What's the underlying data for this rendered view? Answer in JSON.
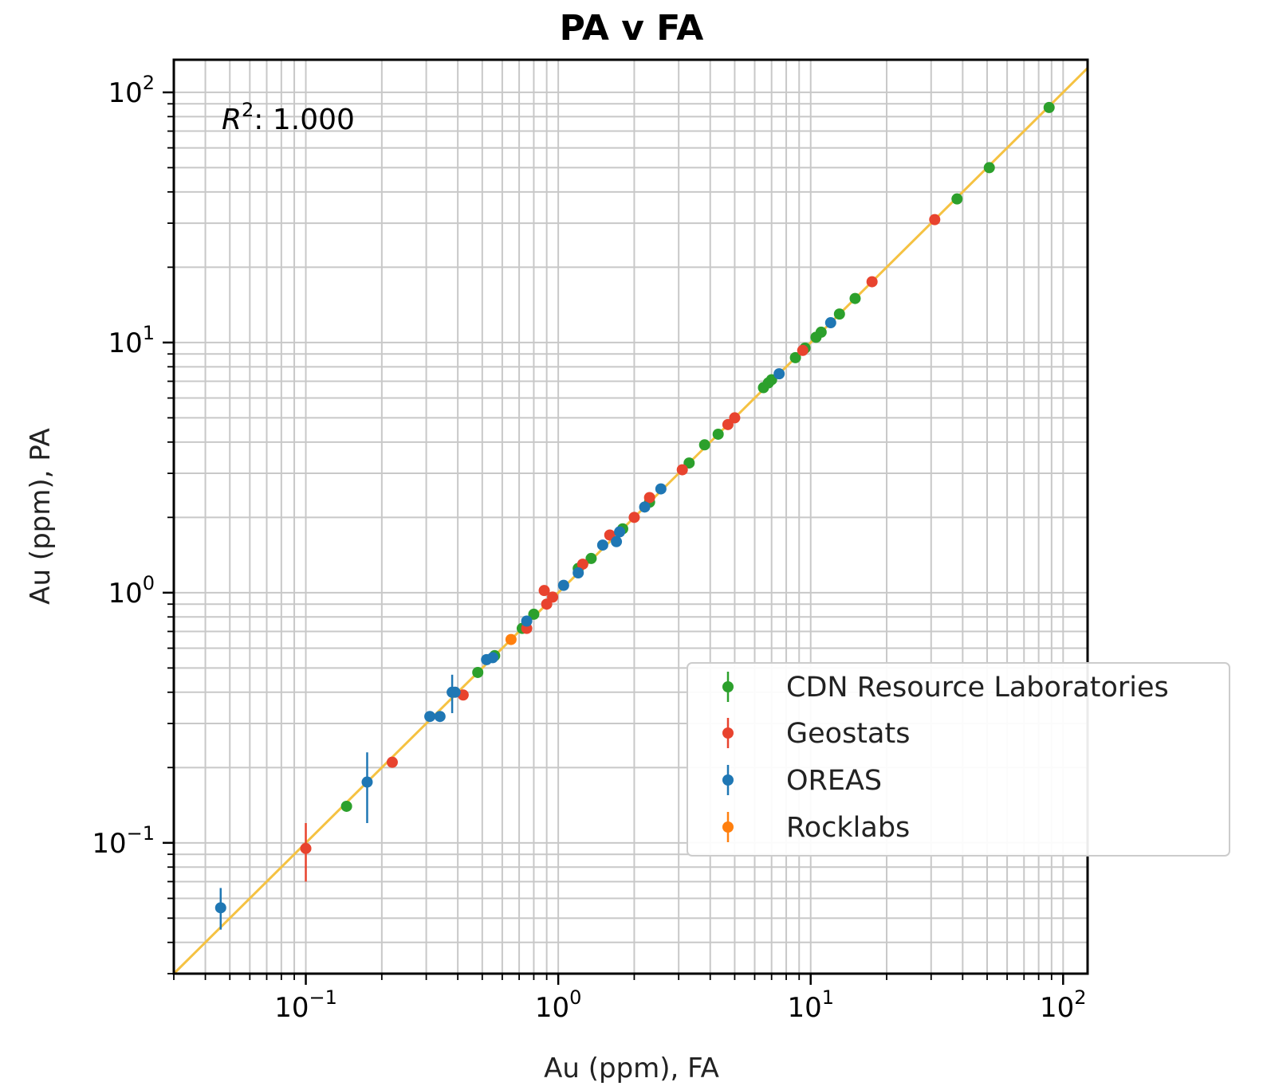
{
  "chart_data": {
    "type": "scatter",
    "title": "PA v FA",
    "xlabel": "Au (ppm), FA",
    "ylabel": "Au (ppm), PA",
    "xscale": "log",
    "yscale": "log",
    "xlim": [
      0.03,
      125
    ],
    "ylim": [
      0.03,
      135
    ],
    "grid": true,
    "legend_position": "lower-right",
    "annotation": {
      "prefix": "R",
      "sup": "2",
      "text": ": 1.000"
    },
    "x_ticks": [
      {
        "base": "10",
        "exp": "−1",
        "value": 0.1
      },
      {
        "base": "10",
        "exp": "0",
        "value": 1
      },
      {
        "base": "10",
        "exp": "1",
        "value": 10
      },
      {
        "base": "10",
        "exp": "2",
        "value": 100
      }
    ],
    "y_ticks": [
      {
        "base": "10",
        "exp": "−1",
        "value": 0.1
      },
      {
        "base": "10",
        "exp": "0",
        "value": 1
      },
      {
        "base": "10",
        "exp": "1",
        "value": 10
      },
      {
        "base": "10",
        "exp": "2",
        "value": 100
      }
    ],
    "reference_line": {
      "type": "y=x",
      "color": "#f5c242"
    },
    "series": [
      {
        "name": "CDN Resource Laboratories",
        "color": "#2ca02c",
        "points": [
          [
            0.145,
            0.14
          ],
          [
            0.48,
            0.48
          ],
          [
            0.56,
            0.56
          ],
          [
            0.72,
            0.72
          ],
          [
            0.8,
            0.82
          ],
          [
            1.2,
            1.25
          ],
          [
            1.35,
            1.37
          ],
          [
            1.8,
            1.8
          ],
          [
            2.3,
            2.3
          ],
          [
            3.3,
            3.3
          ],
          [
            3.8,
            3.9
          ],
          [
            4.3,
            4.3
          ],
          [
            6.5,
            6.6
          ],
          [
            6.8,
            6.9
          ],
          [
            7.0,
            7.1
          ],
          [
            8.7,
            8.7
          ],
          [
            9.5,
            9.5
          ],
          [
            10.5,
            10.5
          ],
          [
            11.0,
            11.0
          ],
          [
            13.0,
            13.0
          ],
          [
            15.0,
            15.0
          ],
          [
            38.0,
            37.5
          ],
          [
            51.0,
            50.0
          ],
          [
            88.0,
            87.0
          ]
        ],
        "errors": []
      },
      {
        "name": "Geostats",
        "color": "#e8432e",
        "points": [
          [
            0.1,
            0.095
          ],
          [
            0.22,
            0.21
          ],
          [
            0.42,
            0.39
          ],
          [
            0.75,
            0.72
          ],
          [
            0.88,
            1.02
          ],
          [
            0.9,
            0.9
          ],
          [
            0.95,
            0.96
          ],
          [
            1.25,
            1.3
          ],
          [
            1.6,
            1.7
          ],
          [
            2.0,
            2.0
          ],
          [
            2.3,
            2.4
          ],
          [
            3.1,
            3.1
          ],
          [
            4.7,
            4.7
          ],
          [
            5.0,
            5.0
          ],
          [
            9.3,
            9.3
          ],
          [
            17.5,
            17.5
          ],
          [
            31.0,
            31.0
          ]
        ],
        "errors": [
          {
            "x": 0.1,
            "low": 0.07,
            "high": 0.12
          }
        ]
      },
      {
        "name": "OREAS",
        "color": "#1f77b4",
        "points": [
          [
            0.046,
            0.055
          ],
          [
            0.175,
            0.175
          ],
          [
            0.31,
            0.32
          ],
          [
            0.34,
            0.32
          ],
          [
            0.38,
            0.4
          ],
          [
            0.39,
            0.4
          ],
          [
            0.52,
            0.54
          ],
          [
            0.55,
            0.55
          ],
          [
            0.75,
            0.77
          ],
          [
            1.05,
            1.07
          ],
          [
            1.2,
            1.2
          ],
          [
            1.5,
            1.55
          ],
          [
            1.7,
            1.6
          ],
          [
            1.75,
            1.75
          ],
          [
            2.2,
            2.2
          ],
          [
            2.55,
            2.6
          ],
          [
            7.5,
            7.5
          ],
          [
            12.0,
            12.0
          ]
        ],
        "errors": [
          {
            "x": 0.046,
            "low": 0.045,
            "high": 0.066
          },
          {
            "x": 0.175,
            "low": 0.12,
            "high": 0.23
          },
          {
            "x": 0.38,
            "low": 0.33,
            "high": 0.47
          }
        ]
      },
      {
        "name": "Rocklabs",
        "color": "#ff7f0e",
        "points": [
          [
            0.65,
            0.65
          ]
        ],
        "errors": []
      }
    ]
  }
}
